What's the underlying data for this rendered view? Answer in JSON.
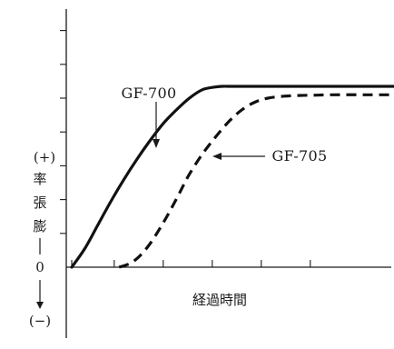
{
  "chart_data": {
    "type": "line",
    "xlabel": "経過時間",
    "ylabel_chars": [
      "膨",
      "張",
      "率"
    ],
    "y_positive_marker": "(+)",
    "y_negative_marker": "(−)",
    "y_zero_label": "0",
    "grid": false,
    "xlim": [
      0,
      10
    ],
    "ylim": [
      -2.2,
      8.6
    ],
    "x_ticks": [
      0,
      1.3,
      2.8,
      4.3,
      5.8,
      7.3
    ],
    "y_ticks": [
      1,
      2,
      3,
      4,
      5,
      6,
      7,
      8
    ],
    "series": [
      {
        "name": "GF-700",
        "style": "solid",
        "color": "#111111",
        "x": [
          0.0,
          0.4,
          0.8,
          1.2,
          1.6,
          2.0,
          2.4,
          2.8,
          3.2,
          3.6,
          4.0,
          4.4,
          4.6,
          5.0,
          6.0,
          7.0,
          8.0,
          9.0,
          10.0
        ],
        "y": [
          0.0,
          0.55,
          1.25,
          1.95,
          2.6,
          3.2,
          3.75,
          4.25,
          4.65,
          5.0,
          5.25,
          5.33,
          5.35,
          5.35,
          5.35,
          5.35,
          5.35,
          5.35,
          5.35
        ]
      },
      {
        "name": "GF-705",
        "style": "dashed",
        "color": "#111111",
        "x": [
          1.45,
          1.8,
          2.1,
          2.4,
          2.7,
          3.0,
          3.3,
          3.6,
          4.0,
          4.4,
          4.8,
          5.2,
          5.6,
          6.0,
          6.5,
          7.0,
          7.5,
          8.0,
          9.0,
          10.0
        ],
        "y": [
          0.0,
          0.12,
          0.35,
          0.7,
          1.15,
          1.65,
          2.2,
          2.75,
          3.35,
          3.85,
          4.3,
          4.65,
          4.88,
          5.0,
          5.06,
          5.08,
          5.09,
          5.1,
          5.1,
          5.1
        ]
      }
    ],
    "annotations": [
      {
        "text": "GF-700",
        "series": "GF-700",
        "at_x": 2.5,
        "arrow": "down"
      },
      {
        "text": "GF-705",
        "series": "GF-705",
        "at_x": 4.3,
        "arrow": "left"
      }
    ]
  }
}
